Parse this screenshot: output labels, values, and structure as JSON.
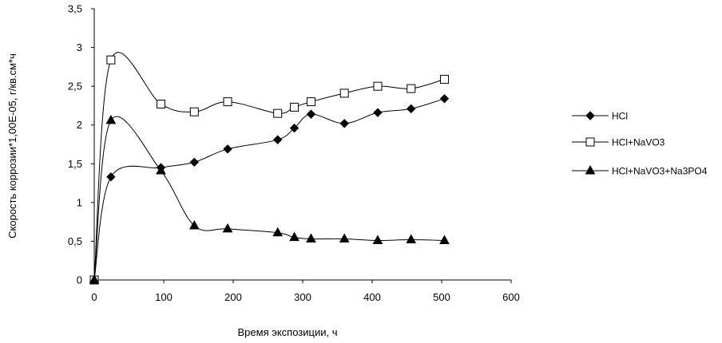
{
  "chart_data": {
    "type": "line",
    "title": "",
    "xlabel": "Время экспозиции, ч",
    "ylabel": "Скорость коррозии*1,00Е-05, г/кв.см*ч",
    "xlim": [
      0,
      600
    ],
    "ylim": [
      0,
      3.5
    ],
    "x_ticks": [
      "0",
      "100",
      "200",
      "300",
      "400",
      "500",
      "600"
    ],
    "y_ticks": [
      "0",
      "0,5",
      "1",
      "1,5",
      "2",
      "2,5",
      "3",
      "3,5"
    ],
    "grid": false,
    "legend_position": "right",
    "series": [
      {
        "name": "HCl",
        "marker": "diamond",
        "x": [
          0,
          24,
          96,
          144,
          192,
          264,
          288,
          312,
          360,
          408,
          456,
          504
        ],
        "y": [
          0,
          1.33,
          1.45,
          1.52,
          1.69,
          1.81,
          1.96,
          2.14,
          2.02,
          2.16,
          2.21,
          2.34
        ]
      },
      {
        "name": "HCl+NaVO3",
        "marker": "square",
        "x": [
          0,
          24,
          96,
          144,
          192,
          264,
          288,
          312,
          360,
          408,
          456,
          504
        ],
        "y": [
          0,
          2.84,
          2.27,
          2.17,
          2.3,
          2.15,
          2.23,
          2.3,
          2.41,
          2.5,
          2.47,
          2.59
        ]
      },
      {
        "name": "HCl+NaVO3+Na3PO4",
        "marker": "triangle",
        "x": [
          0,
          24,
          96,
          144,
          192,
          264,
          288,
          312,
          360,
          408,
          456,
          504
        ],
        "y": [
          0,
          2.06,
          1.41,
          0.7,
          0.66,
          0.61,
          0.55,
          0.53,
          0.53,
          0.51,
          0.52,
          0.51
        ]
      }
    ]
  }
}
